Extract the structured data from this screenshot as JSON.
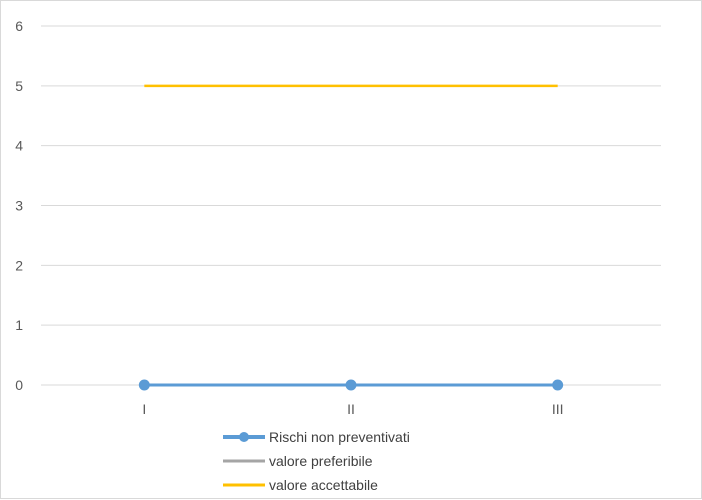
{
  "chart_data": {
    "type": "line",
    "categories": [
      "I",
      "II",
      "III"
    ],
    "series": [
      {
        "name": "Rischi non preventivati",
        "values": [
          0,
          0,
          0
        ],
        "color": "#5b9bd5",
        "markers": true
      },
      {
        "name": "valore preferibile",
        "values": [
          0,
          0,
          0
        ],
        "color": "#a5a5a5",
        "markers": false
      },
      {
        "name": "valore accettabile",
        "values": [
          5,
          5,
          5
        ],
        "color": "#ffc000",
        "markers": false
      }
    ],
    "ylim": [
      0,
      6
    ],
    "yticks": [
      0,
      1,
      2,
      3,
      4,
      5,
      6
    ],
    "grid": true,
    "legend_position": "bottom"
  }
}
